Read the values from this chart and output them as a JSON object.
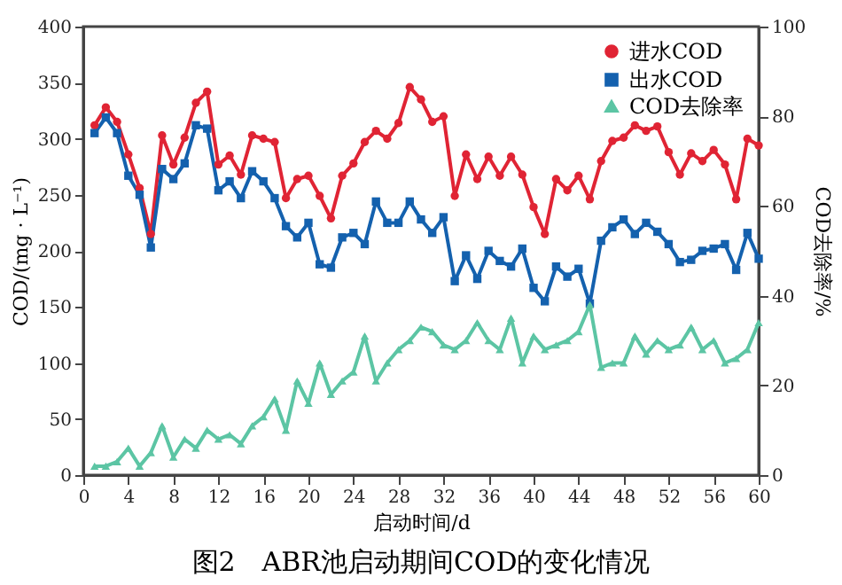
{
  "chart_data": {
    "type": "line",
    "title": "图2　ABR池启动期间COD的变化情况",
    "xlabel": "启动时间/d",
    "ylabel": "COD/(mg · L⁻¹)",
    "y2label": "COD去除率/%",
    "x": [
      1,
      2,
      3,
      4,
      5,
      6,
      7,
      8,
      9,
      10,
      11,
      12,
      13,
      14,
      15,
      16,
      17,
      18,
      19,
      20,
      21,
      22,
      23,
      24,
      25,
      26,
      27,
      28,
      29,
      30,
      31,
      32,
      33,
      34,
      35,
      36,
      37,
      38,
      39,
      40,
      41,
      42,
      43,
      44,
      45,
      46,
      47,
      48,
      49,
      50,
      51,
      52,
      53,
      54,
      55,
      56,
      57,
      58,
      59,
      60
    ],
    "series": [
      {
        "name": "进水COD",
        "color": "#e02434",
        "marker": "circle",
        "values": [
          312,
          328,
          315,
          286,
          256,
          215,
          303,
          277,
          301,
          332,
          342,
          277,
          285,
          268,
          303,
          300,
          297,
          247,
          264,
          267,
          249,
          229,
          267,
          278,
          297,
          307,
          300,
          314,
          346,
          335,
          315,
          320,
          249,
          286,
          264,
          284,
          267,
          284,
          268,
          239,
          215,
          264,
          254,
          267,
          246,
          280,
          298,
          301,
          312,
          307,
          311,
          288,
          268,
          287,
          280,
          290,
          277,
          246,
          300,
          294
        ]
      },
      {
        "name": "出水COD",
        "color": "#1461ae",
        "marker": "square",
        "values": [
          305,
          319,
          305,
          267,
          250,
          203,
          273,
          264,
          278,
          312,
          309,
          254,
          262,
          247,
          271,
          262,
          247,
          222,
          212,
          225,
          188,
          185,
          212,
          216,
          206,
          244,
          225,
          225,
          244,
          228,
          216,
          230,
          173,
          196,
          175,
          200,
          191,
          186,
          202,
          167,
          155,
          186,
          177,
          184,
          153,
          209,
          221,
          228,
          215,
          225,
          217,
          206,
          190,
          192,
          200,
          202,
          206,
          183,
          216,
          193
        ]
      },
      {
        "name": "COD去除率",
        "color": "#5cc5a4",
        "marker": "triangle",
        "axis": "y2",
        "values": [
          2,
          2,
          3,
          6,
          2,
          5,
          11,
          4,
          8,
          6,
          10,
          8,
          9,
          7,
          11,
          13,
          17,
          10,
          21,
          16,
          25,
          18,
          21,
          23,
          31,
          21,
          25,
          28,
          30,
          33,
          32,
          29,
          28,
          30,
          34,
          30,
          28,
          35,
          25,
          31,
          28,
          29,
          30,
          32,
          38,
          24,
          25,
          25,
          31,
          27,
          30,
          28,
          29,
          33,
          28,
          30,
          25,
          26,
          28,
          34
        ]
      }
    ],
    "xlim": [
      0,
      60
    ],
    "xticks": [
      0,
      4,
      8,
      12,
      16,
      20,
      24,
      28,
      32,
      36,
      40,
      44,
      48,
      52,
      56,
      60
    ],
    "ylim": [
      0,
      400
    ],
    "yticks": [
      0,
      50,
      100,
      150,
      200,
      250,
      300,
      350,
      400
    ],
    "y2lim": [
      0,
      100
    ],
    "y2ticks": [
      0,
      20,
      40,
      60,
      80,
      100
    ],
    "legend": "top right",
    "grid": false,
    "line_style": "solid"
  }
}
